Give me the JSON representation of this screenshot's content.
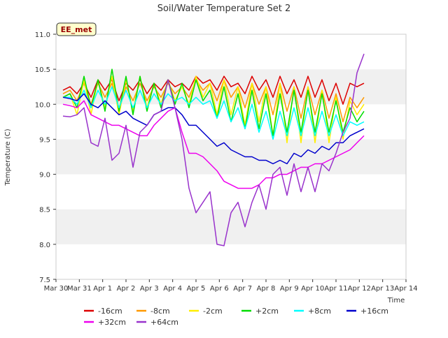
{
  "chart_data": {
    "type": "line",
    "title": "Soil/Water Temperature Set 2",
    "xlabel": "Time",
    "ylabel": "Temperature (C)",
    "badge": "EE_met",
    "ylim": [
      7.5,
      11.0
    ],
    "yticks": [
      "7.5",
      "8.0",
      "8.5",
      "9.0",
      "9.5",
      "10.0",
      "10.5",
      "11.0"
    ],
    "xlim": [
      0,
      15
    ],
    "xticks": [
      "Mar 30",
      "Mar 31",
      "Apr 1",
      "Apr 2",
      "Apr 3",
      "Apr 4",
      "Apr 5",
      "Apr 6",
      "Apr 7",
      "Apr 8",
      "Apr 9",
      "Apr 10",
      "Apr 11",
      "Apr 12",
      "Apr 13",
      "Apr 14"
    ],
    "grid": "alternating horizontal bands",
    "legend_position": "bottom",
    "series": [
      {
        "name": "-16cm",
        "color": "#dd0000",
        "x": [
          0.3,
          0.6,
          0.9,
          1.2,
          1.5,
          1.8,
          2.1,
          2.4,
          2.7,
          3.0,
          3.3,
          3.6,
          3.9,
          4.2,
          4.5,
          4.8,
          5.1,
          5.4,
          5.7,
          6.0,
          6.3,
          6.6,
          6.9,
          7.2,
          7.5,
          7.8,
          8.1,
          8.4,
          8.7,
          9.0,
          9.3,
          9.6,
          9.9,
          10.2,
          10.5,
          10.8,
          11.1,
          11.4,
          11.7,
          12.0,
          12.3,
          12.6,
          12.9,
          13.2
        ],
        "values": [
          10.2,
          10.25,
          10.15,
          10.3,
          10.1,
          10.35,
          10.2,
          10.35,
          10.05,
          10.3,
          10.2,
          10.35,
          10.15,
          10.3,
          10.2,
          10.35,
          10.25,
          10.3,
          10.2,
          10.4,
          10.3,
          10.35,
          10.2,
          10.4,
          10.25,
          10.3,
          10.15,
          10.4,
          10.2,
          10.35,
          10.1,
          10.4,
          10.15,
          10.35,
          10.1,
          10.4,
          10.1,
          10.35,
          10.05,
          10.3,
          10.0,
          10.3,
          10.25,
          10.3
        ]
      },
      {
        "name": "-8cm",
        "color": "#ff9900",
        "x": [
          0.3,
          0.6,
          0.9,
          1.2,
          1.5,
          1.8,
          2.1,
          2.4,
          2.7,
          3.0,
          3.3,
          3.6,
          3.9,
          4.2,
          4.5,
          4.8,
          5.1,
          5.4,
          5.7,
          6.0,
          6.3,
          6.6,
          6.9,
          7.2,
          7.5,
          7.8,
          8.1,
          8.4,
          8.7,
          9.0,
          9.3,
          9.6,
          9.9,
          10.2,
          10.5,
          10.8,
          11.1,
          11.4,
          11.7,
          12.0,
          12.3,
          12.6,
          12.9,
          13.2
        ],
        "values": [
          10.15,
          10.2,
          10.05,
          10.3,
          10.0,
          10.3,
          10.1,
          10.3,
          9.95,
          10.25,
          10.05,
          10.3,
          10.05,
          10.25,
          10.1,
          10.3,
          10.15,
          10.25,
          10.1,
          10.35,
          10.2,
          10.3,
          10.05,
          10.35,
          10.1,
          10.25,
          9.95,
          10.3,
          10.0,
          10.25,
          9.85,
          10.3,
          9.9,
          10.25,
          9.8,
          10.25,
          9.85,
          10.2,
          9.8,
          10.15,
          9.75,
          10.1,
          9.95,
          10.1
        ]
      },
      {
        "name": "-2cm",
        "color": "#ffee00",
        "x": [
          0.3,
          0.6,
          0.9,
          1.2,
          1.5,
          1.8,
          2.1,
          2.4,
          2.7,
          3.0,
          3.3,
          3.6,
          3.9,
          4.2,
          4.5,
          4.8,
          5.1,
          5.4,
          5.7,
          6.0,
          6.3,
          6.6,
          6.9,
          7.2,
          7.5,
          7.8,
          8.1,
          8.4,
          8.7,
          9.0,
          9.3,
          9.6,
          9.9,
          10.2,
          10.5,
          10.8,
          11.1,
          11.4,
          11.7,
          12.0,
          12.3,
          12.6,
          12.9,
          13.2
        ],
        "values": [
          10.1,
          10.15,
          9.85,
          10.35,
          9.85,
          10.35,
          9.95,
          10.4,
          9.85,
          10.35,
          9.9,
          10.4,
          9.95,
          10.3,
          10.0,
          10.35,
          10.05,
          10.25,
          10.0,
          10.4,
          10.1,
          10.3,
          9.85,
          10.35,
          9.85,
          10.25,
          9.7,
          10.3,
          9.75,
          10.25,
          9.55,
          10.3,
          9.45,
          10.25,
          9.45,
          10.25,
          9.45,
          10.2,
          9.45,
          10.1,
          9.5,
          10.05,
          9.85,
          10.0
        ]
      },
      {
        "name": "+2cm",
        "color": "#00dd00",
        "x": [
          0.3,
          0.6,
          0.9,
          1.2,
          1.5,
          1.8,
          2.1,
          2.4,
          2.7,
          3.0,
          3.3,
          3.6,
          3.9,
          4.2,
          4.5,
          4.8,
          5.1,
          5.4,
          5.7,
          6.0,
          6.3,
          6.6,
          6.9,
          7.2,
          7.5,
          7.8,
          8.1,
          8.4,
          8.7,
          9.0,
          9.3,
          9.6,
          9.9,
          10.2,
          10.5,
          10.8,
          11.1,
          11.4,
          11.7,
          12.0,
          12.3,
          12.6,
          12.9,
          13.2
        ],
        "values": [
          10.1,
          10.15,
          9.95,
          10.4,
          9.95,
          10.35,
          9.9,
          10.5,
          9.9,
          10.4,
          9.85,
          10.4,
          9.9,
          10.3,
          9.95,
          10.35,
          10.0,
          10.3,
          9.95,
          10.35,
          10.05,
          10.2,
          9.8,
          10.25,
          9.75,
          10.15,
          9.65,
          10.2,
          9.65,
          10.15,
          9.55,
          10.15,
          9.6,
          10.2,
          9.6,
          10.2,
          9.6,
          10.15,
          9.6,
          10.05,
          9.6,
          9.95,
          9.75,
          9.9
        ]
      },
      {
        "name": "+8cm",
        "color": "#00ffff",
        "x": [
          0.3,
          0.6,
          0.9,
          1.2,
          1.5,
          1.8,
          2.1,
          2.4,
          2.7,
          3.0,
          3.3,
          3.6,
          3.9,
          4.2,
          4.5,
          4.8,
          5.1,
          5.4,
          5.7,
          6.0,
          6.3,
          6.6,
          6.9,
          7.2,
          7.5,
          7.8,
          8.1,
          8.4,
          8.7,
          9.0,
          9.3,
          9.6,
          9.9,
          10.2,
          10.5,
          10.8,
          11.1,
          11.4,
          11.7,
          12.0,
          12.3,
          12.6,
          12.9,
          13.2
        ],
        "values": [
          10.1,
          10.1,
          10.0,
          10.2,
          9.95,
          10.2,
          10.0,
          10.25,
          9.95,
          10.2,
          9.95,
          10.2,
          9.95,
          10.15,
          10.0,
          10.15,
          10.05,
          10.1,
          10.0,
          10.1,
          10.0,
          10.05,
          9.8,
          10.05,
          9.75,
          9.95,
          9.65,
          10.0,
          9.6,
          9.9,
          9.5,
          9.9,
          9.55,
          9.95,
          9.55,
          9.95,
          9.55,
          9.9,
          9.55,
          9.85,
          9.55,
          9.75,
          9.7,
          9.75
        ]
      },
      {
        "name": "+16cm",
        "color": "#0000cc",
        "x": [
          0.3,
          0.6,
          0.9,
          1.2,
          1.5,
          1.8,
          2.1,
          2.4,
          2.7,
          3.0,
          3.3,
          3.6,
          3.9,
          4.2,
          4.5,
          4.8,
          5.1,
          5.4,
          5.7,
          6.0,
          6.3,
          6.6,
          6.9,
          7.2,
          7.5,
          7.8,
          8.1,
          8.4,
          8.7,
          9.0,
          9.3,
          9.6,
          9.9,
          10.2,
          10.5,
          10.8,
          11.1,
          11.4,
          11.7,
          12.0,
          12.3,
          12.6,
          12.9,
          13.2
        ],
        "values": [
          10.1,
          10.08,
          10.05,
          10.15,
          10.0,
          9.95,
          10.05,
          9.95,
          9.85,
          9.9,
          9.8,
          9.75,
          9.7,
          9.85,
          9.9,
          9.95,
          9.95,
          9.85,
          9.7,
          9.7,
          9.6,
          9.5,
          9.4,
          9.45,
          9.35,
          9.3,
          9.25,
          9.25,
          9.2,
          9.2,
          9.15,
          9.2,
          9.15,
          9.3,
          9.25,
          9.35,
          9.3,
          9.4,
          9.35,
          9.45,
          9.45,
          9.55,
          9.6,
          9.65
        ]
      },
      {
        "name": "+32cm",
        "color": "#ee00ee",
        "x": [
          0.3,
          0.6,
          0.9,
          1.2,
          1.5,
          1.8,
          2.1,
          2.4,
          2.7,
          3.0,
          3.3,
          3.6,
          3.9,
          4.2,
          4.5,
          4.8,
          5.1,
          5.4,
          5.7,
          6.0,
          6.3,
          6.6,
          6.9,
          7.2,
          7.5,
          7.8,
          8.1,
          8.4,
          8.7,
          9.0,
          9.3,
          9.6,
          9.9,
          10.2,
          10.5,
          10.8,
          11.1,
          11.4,
          11.7,
          12.0,
          12.3,
          12.6,
          12.9,
          13.2
        ],
        "values": [
          10.0,
          9.98,
          9.95,
          10.05,
          9.85,
          9.8,
          9.75,
          9.7,
          9.7,
          9.65,
          9.6,
          9.55,
          9.55,
          9.7,
          9.8,
          9.9,
          9.95,
          9.6,
          9.3,
          9.3,
          9.25,
          9.15,
          9.05,
          8.9,
          8.85,
          8.8,
          8.8,
          8.8,
          8.85,
          8.95,
          8.95,
          9.0,
          9.0,
          9.05,
          9.1,
          9.1,
          9.15,
          9.15,
          9.2,
          9.25,
          9.3,
          9.35,
          9.45,
          9.55
        ]
      },
      {
        "name": "+64cm",
        "color": "#9933cc",
        "x": [
          0.3,
          0.6,
          0.9,
          1.2,
          1.5,
          1.8,
          2.1,
          2.4,
          2.7,
          3.0,
          3.3,
          3.6,
          3.9,
          4.2,
          4.5,
          4.8,
          5.1,
          5.4,
          5.7,
          6.0,
          6.3,
          6.6,
          6.9,
          7.2,
          7.5,
          7.8,
          8.1,
          8.4,
          8.7,
          9.0,
          9.3,
          9.6,
          9.9,
          10.2,
          10.5,
          10.8,
          11.1,
          11.4,
          11.7,
          12.0,
          12.3,
          12.6,
          12.9,
          13.2
        ],
        "values": [
          9.83,
          9.82,
          9.85,
          9.95,
          9.45,
          9.4,
          9.8,
          9.2,
          9.3,
          9.7,
          9.1,
          9.6,
          9.7,
          9.85,
          9.9,
          10.35,
          9.95,
          9.5,
          8.8,
          8.45,
          8.6,
          8.75,
          8.0,
          7.98,
          8.45,
          8.6,
          8.25,
          8.6,
          8.85,
          8.5,
          9.0,
          9.1,
          8.7,
          9.15,
          8.75,
          9.1,
          8.75,
          9.15,
          9.05,
          9.3,
          9.6,
          9.8,
          10.45,
          10.72
        ]
      }
    ]
  }
}
